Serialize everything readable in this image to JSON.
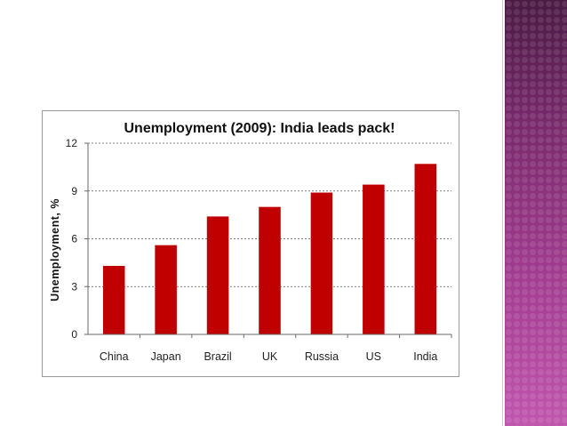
{
  "colors": {
    "bar": "#c00000",
    "grid": "#555555",
    "side_band": "#8e2f7c"
  },
  "chart_data": {
    "type": "bar",
    "title": "Unemployment (2009): India leads pack!",
    "xlabel": "",
    "ylabel": "Unemployment, %",
    "categories": [
      "China",
      "Japan",
      "Brazil",
      "UK",
      "Russia",
      "US",
      "India"
    ],
    "values": [
      4.3,
      5.6,
      7.4,
      8.0,
      8.9,
      9.4,
      10.7
    ],
    "ylim": [
      0,
      12
    ],
    "yticks": [
      "0",
      "3",
      "6",
      "9",
      "12"
    ],
    "grid": "horizontal dashed",
    "legend": "none"
  }
}
